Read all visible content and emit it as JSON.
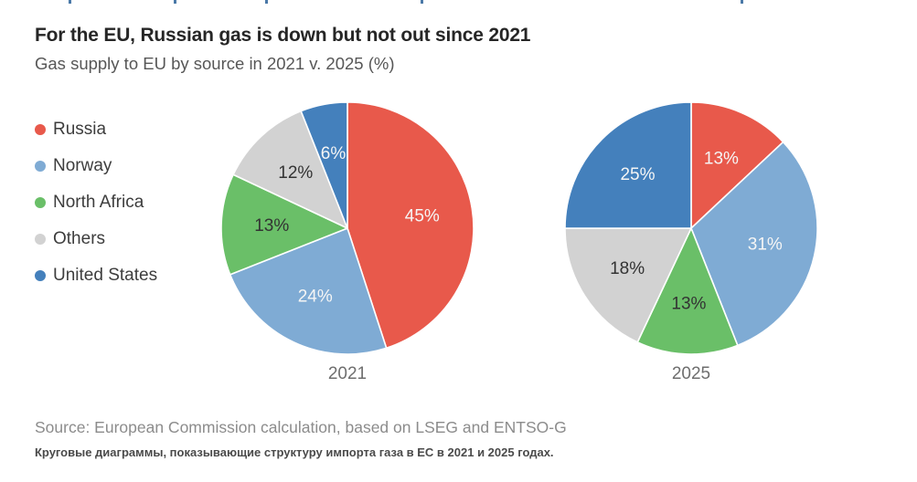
{
  "page": {
    "title": "For the EU, Russian gas is down but not out since 2021",
    "subtitle": "Gas supply to EU by source in 2021 v. 2025 (%)",
    "source": "Source: European Commission calculation, based on LSEG and ENTSO-G",
    "caption": "Круговые диаграммы, показывающие структуру импорта газа в ЕС в 2021 и 2025 годах."
  },
  "legend": {
    "items": [
      {
        "label": "Russia",
        "color": "#e8594b"
      },
      {
        "label": "Norway",
        "color": "#7fabd4"
      },
      {
        "label": "North Africa",
        "color": "#6abf68"
      },
      {
        "label": "Others",
        "color": "#d2d2d2"
      },
      {
        "label": "United States",
        "color": "#4480bc"
      }
    ]
  },
  "chart_data": [
    {
      "type": "pie",
      "year": "2021",
      "categories": [
        "Russia",
        "Norway",
        "North Africa",
        "Others",
        "United States"
      ],
      "values": [
        45,
        24,
        13,
        12,
        6
      ],
      "labels": [
        "45%",
        "24%",
        "13%",
        "12%",
        "6%"
      ],
      "colors": [
        "#e8594b",
        "#7fabd4",
        "#6abf68",
        "#d2d2d2",
        "#4480bc"
      ],
      "label_colors": [
        "#f5f5f5",
        "#f5f5f5",
        "#333333",
        "#333333",
        "#f5f5f5"
      ],
      "start_angle_deg": 0,
      "direction": "clockwise",
      "legend_position": "left"
    },
    {
      "type": "pie",
      "year": "2025",
      "categories": [
        "Russia",
        "Norway",
        "North Africa",
        "Others",
        "United States"
      ],
      "values": [
        13,
        31,
        13,
        18,
        25
      ],
      "labels": [
        "13%",
        "31%",
        "13%",
        "18%",
        "25%"
      ],
      "colors": [
        "#e8594b",
        "#7fabd4",
        "#6abf68",
        "#d2d2d2",
        "#4480bc"
      ],
      "label_colors": [
        "#f5f5f5",
        "#f5f5f5",
        "#333333",
        "#333333",
        "#f5f5f5"
      ],
      "start_angle_deg": 0,
      "direction": "clockwise",
      "legend_position": "left"
    }
  ],
  "artifacts": {
    "positions": [
      75,
      190,
      290,
      460,
      810
    ]
  }
}
